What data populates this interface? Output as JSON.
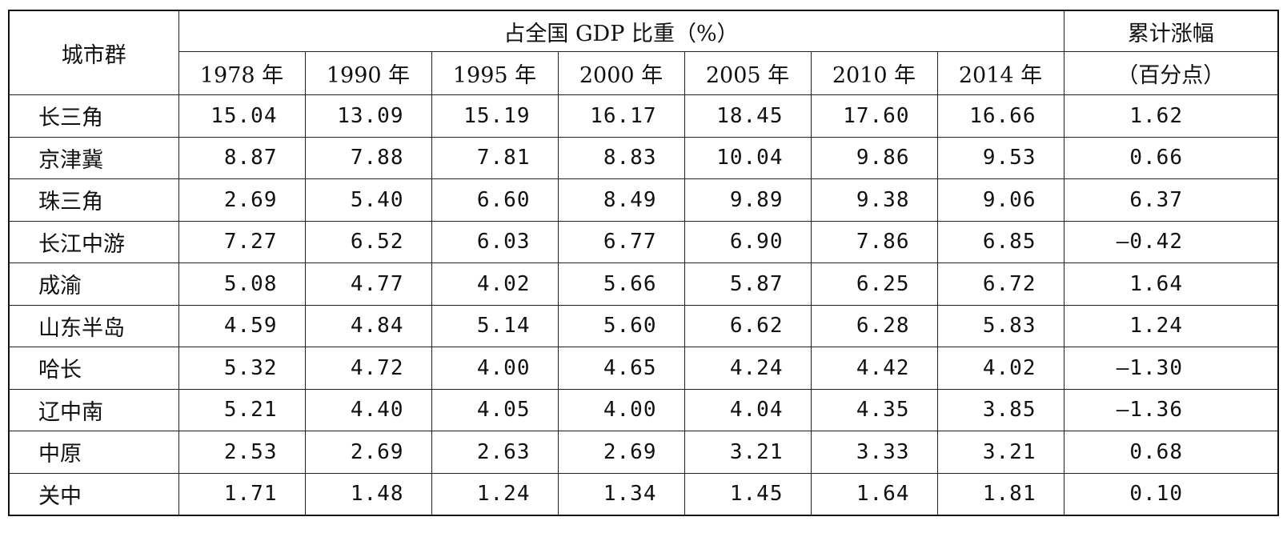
{
  "header": {
    "city_group": "城市群",
    "share_title": "占全国 GDP 比重（%）",
    "cumulative_title_line1": "累计涨幅",
    "cumulative_title_line2": "（百分点）",
    "years": [
      "1978 年",
      "1990 年",
      "1995 年",
      "2000 年",
      "2005 年",
      "2010 年",
      "2014 年"
    ]
  },
  "rows": [
    {
      "name": "长三角",
      "values": [
        "15.04",
        "13.09",
        "15.19",
        "16.17",
        "18.45",
        "17.60",
        "16.66"
      ],
      "change": "1.62"
    },
    {
      "name": "京津冀",
      "values": [
        "8.87",
        "7.88",
        "7.81",
        "8.83",
        "10.04",
        "9.86",
        "9.53"
      ],
      "change": "0.66"
    },
    {
      "name": "珠三角",
      "values": [
        "2.69",
        "5.40",
        "6.60",
        "8.49",
        "9.89",
        "9.38",
        "9.06"
      ],
      "change": "6.37"
    },
    {
      "name": "长江中游",
      "values": [
        "7.27",
        "6.52",
        "6.03",
        "6.77",
        "6.90",
        "7.86",
        "6.85"
      ],
      "change": "—0.42"
    },
    {
      "name": "成渝",
      "values": [
        "5.08",
        "4.77",
        "4.02",
        "5.66",
        "5.87",
        "6.25",
        "6.72"
      ],
      "change": "1.64"
    },
    {
      "name": "山东半岛",
      "values": [
        "4.59",
        "4.84",
        "5.14",
        "5.60",
        "6.62",
        "6.28",
        "5.83"
      ],
      "change": "1.24"
    },
    {
      "name": "哈长",
      "values": [
        "5.32",
        "4.72",
        "4.00",
        "4.65",
        "4.24",
        "4.42",
        "4.02"
      ],
      "change": "—1.30"
    },
    {
      "name": "辽中南",
      "values": [
        "5.21",
        "4.40",
        "4.05",
        "4.00",
        "4.04",
        "4.35",
        "3.85"
      ],
      "change": "—1.36"
    },
    {
      "name": "中原",
      "values": [
        "2.53",
        "2.69",
        "2.63",
        "2.69",
        "3.21",
        "3.33",
        "3.21"
      ],
      "change": "0.68"
    },
    {
      "name": "关中",
      "values": [
        "1.71",
        "1.48",
        "1.24",
        "1.34",
        "1.45",
        "1.64",
        "1.81"
      ],
      "change": "0.10"
    }
  ]
}
